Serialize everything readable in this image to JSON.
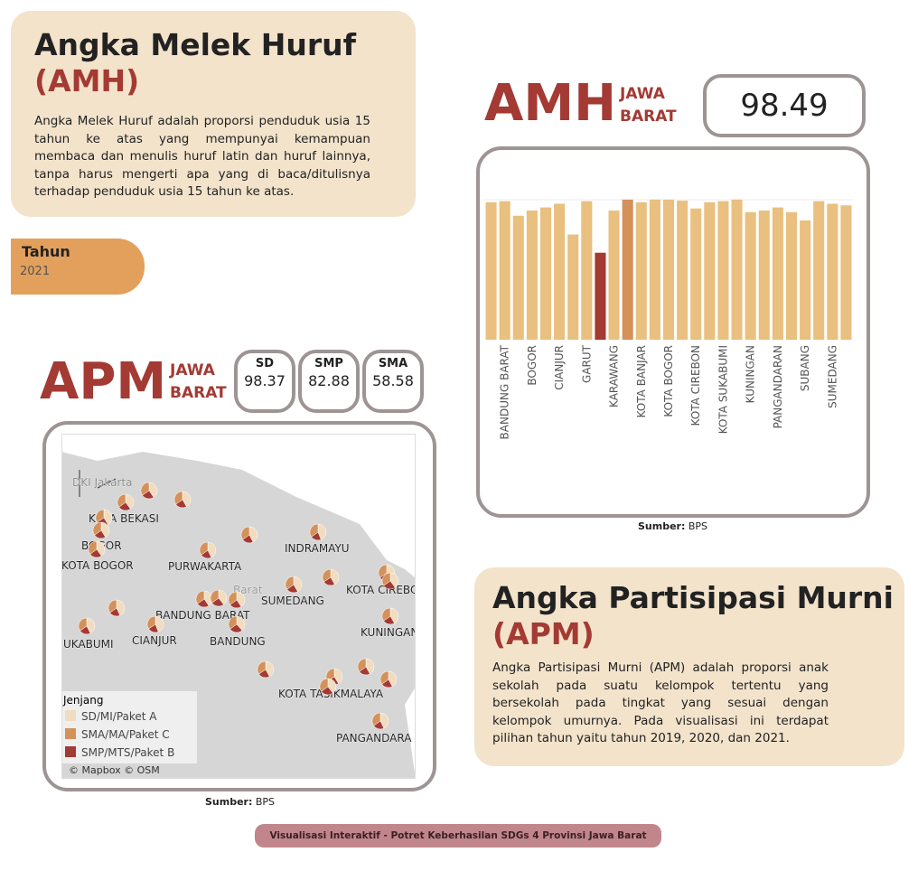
{
  "amh_card": {
    "title": "Angka Melek Huruf",
    "abbr": "(AMH)",
    "description": "Angka Melek Huruf adalah proporsi penduduk usia 15 tahun ke atas yang mempunyai kemampuan membaca dan menulis huruf latin dan huruf lainnya, tanpa harus mengerti apa yang di baca/ditulisnya terhadap penduduk usia 15 tahun ke atas."
  },
  "filter": {
    "label": "Tahun",
    "value": "2021"
  },
  "amh_kpi": {
    "label": "AMH",
    "region_line1": "JAWA",
    "region_line2": "BARAT",
    "value": "98.49"
  },
  "chart_data": {
    "type": "bar",
    "categories": [
      null,
      "BANDUNG BARAT",
      null,
      "BOGOR",
      null,
      "CIANJUR",
      null,
      "GARUT",
      null,
      "KARAWANG",
      null,
      "KOTA BANJAR",
      null,
      "KOTA BOGOR",
      null,
      "KOTA CIREBON",
      null,
      "KOTA SUKABUMI",
      null,
      "KUNINGAN",
      null,
      "PANGANDARAN",
      null,
      "SUBANG",
      null,
      "SUMEDANG",
      null
    ],
    "values": [
      96.4,
      96.6,
      93.8,
      94.8,
      95.4,
      96.1,
      90.2,
      96.6,
      86.7,
      94.8,
      96.9,
      96.4,
      96.9,
      96.9,
      96.7,
      95.2,
      96.4,
      96.6,
      96.9,
      94.5,
      94.8,
      95.4,
      94.5,
      92.9,
      96.6,
      96.1,
      95.8
    ],
    "colors": [
      "#e9c07f",
      "#e9c07f",
      "#e9c07f",
      "#e9c07f",
      "#e9c07f",
      "#e9c07f",
      "#e9c07f",
      "#e9c07f",
      "#a33a33",
      "#e9c07f",
      "#d4915a",
      "#e9c07f",
      "#e9c07f",
      "#e9c07f",
      "#e9c07f",
      "#e9c07f",
      "#e9c07f",
      "#e9c07f",
      "#e9c07f",
      "#e9c07f",
      "#e9c07f",
      "#e9c07f",
      "#e9c07f",
      "#e9c07f",
      "#e9c07f",
      "#e9c07f",
      "#e9c07f"
    ],
    "ylim": [
      70,
      104
    ]
  },
  "amh_source": {
    "label": "Sumber:",
    "value": "BPS"
  },
  "apm_kpi": {
    "label": "APM",
    "region_line1": "JAWA",
    "region_line2": "BARAT",
    "items": [
      {
        "label": "SD",
        "value": "98.37"
      },
      {
        "label": "SMP",
        "value": "82.88"
      },
      {
        "label": "SMA",
        "value": "58.58"
      }
    ]
  },
  "map": {
    "labels": [
      "DKI Jakarta",
      "KOTA BEKASI",
      "BOGOR",
      "KOTA BOGOR",
      "PURWAKARTA",
      "INDRAMAYU",
      "SUMEDANG",
      "KOTA CIREBO",
      "BANDUNG BARAT",
      "Barat",
      "BANDUNG",
      "CIANJUR",
      "UKABUMI",
      "KUNINGAN",
      "KOTA TASIKMALAYA",
      "PANGANDARA"
    ],
    "pies": [
      [
        98,
        84,
        60
      ],
      [
        97,
        80,
        55
      ],
      [
        98,
        86,
        62
      ],
      [
        99,
        82,
        58
      ],
      [
        98,
        83,
        57
      ],
      [
        97,
        85,
        60
      ],
      [
        98,
        80,
        52
      ],
      [
        97,
        79,
        50
      ],
      [
        99,
        78,
        48
      ],
      [
        98,
        82,
        55
      ],
      [
        98,
        80,
        56
      ],
      [
        99,
        88,
        66
      ],
      [
        98,
        85,
        62
      ],
      [
        97,
        78,
        50
      ],
      [
        98,
        84,
        60
      ],
      [
        98,
        86,
        64
      ],
      [
        97,
        83,
        58
      ],
      [
        98,
        76,
        48
      ],
      [
        98,
        88,
        68
      ],
      [
        97,
        79,
        52
      ],
      [
        98,
        82,
        56
      ],
      [
        98,
        80,
        55
      ],
      [
        97,
        81,
        57
      ],
      [
        98,
        86,
        63
      ],
      [
        98,
        82,
        54
      ],
      [
        97,
        80,
        53
      ],
      [
        98,
        79,
        51
      ]
    ],
    "legend": {
      "title": "Jenjang",
      "items": [
        {
          "name": "SD/MI/Paket A",
          "color": "#f1dcc0"
        },
        {
          "name": "SMA/MA/Paket C",
          "color": "#d4915a"
        },
        {
          "name": "SMP/MTS/Paket B",
          "color": "#a33a33"
        }
      ]
    },
    "attribution": "© Mapbox © OSM"
  },
  "apm_source": {
    "label": "Sumber:",
    "value": "BPS"
  },
  "apm_card": {
    "title": "Angka Partisipasi Murni",
    "abbr": "(APM)",
    "description": "Angka Partisipasi Murni (APM) adalah proporsi anak sekolah pada suatu kelompok tertentu yang bersekolah pada tingkat yang sesuai dengan kelompok umurnya. Pada visualisasi ini terdapat pilihan tahun yaitu tahun 2019, 2020, dan 2021."
  },
  "footer": "Visualisasi Interaktif - Potret Keberhasilan SDGs 4 Provinsi Jawa Barat"
}
